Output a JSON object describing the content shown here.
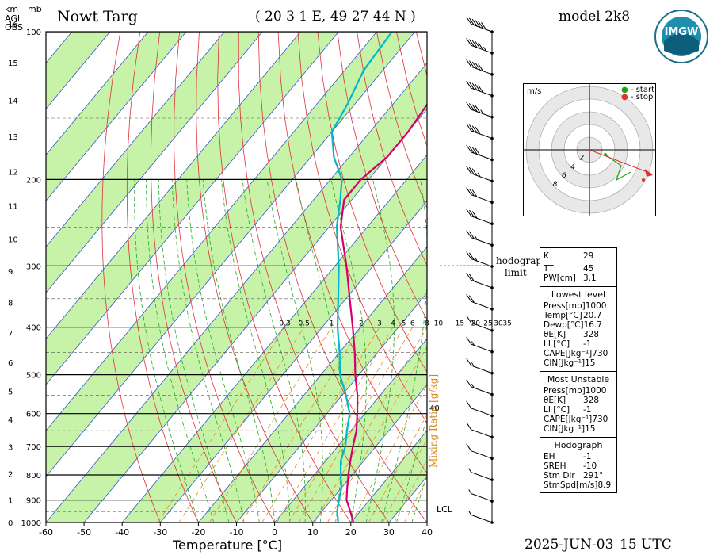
{
  "header": {
    "station": "Nowt Targ",
    "coords": "( 20 3 1 E, 49 27 44 N )",
    "model": "model 2k8",
    "date": "2025-JUN-03",
    "time": "15 UTC",
    "logo_text": "IMGW"
  },
  "axes": {
    "km_label": "km",
    "mb_label": "mb",
    "agl": "AGL",
    "obs": "OBS",
    "xlabel": "Temperature [°C]",
    "mixing_label": "Mixing Ratio [g/kg]",
    "lcl_label": "LCL",
    "hodograph_limit_1": "hodograph",
    "hodograph_limit_2": "limit",
    "mark_40": "40"
  },
  "chart_data": {
    "type": "line",
    "diagram": "skew-T log-p",
    "x_ticks": [
      -60,
      -50,
      -40,
      -30,
      -20,
      -10,
      0,
      10,
      20,
      30,
      40
    ],
    "x_tick_labels": [
      "-60",
      "-50",
      "-40",
      "-30",
      "-20",
      "-10",
      "0",
      "10",
      "20",
      "30",
      "40"
    ],
    "p_ticks": [
      100,
      200,
      300,
      400,
      500,
      600,
      700,
      800,
      900,
      1000
    ],
    "p_tick_labels": [
      "100",
      "200",
      "300",
      "400",
      "500",
      "600",
      "700",
      "800",
      "900",
      "1000"
    ],
    "km_ticks": [
      0,
      1,
      2,
      3,
      4,
      5,
      6,
      7,
      8,
      9,
      10,
      11,
      12,
      13,
      14,
      15,
      16
    ],
    "mixing_ratio_labels": [
      "0.3",
      "0.5",
      "1",
      "2",
      "3",
      "4",
      "5",
      "6",
      "8",
      "10",
      "15",
      "20",
      "25",
      "30",
      "35"
    ],
    "mixing_ratios": [
      0.3,
      0.5,
      1,
      2,
      3,
      4,
      5,
      6,
      8,
      10,
      15,
      20,
      25,
      30,
      35
    ],
    "xlim": [
      -60,
      40
    ],
    "plim": [
      1000,
      100
    ],
    "series": [
      {
        "name": "Temperature",
        "color": "#d4006a",
        "p": [
          1000,
          950,
          900,
          850,
          800,
          750,
          700,
          650,
          600,
          550,
          500,
          450,
          400,
          350,
          300,
          250,
          220,
          200,
          180,
          160,
          140,
          120,
          100
        ],
        "t": [
          20.7,
          17.5,
          14,
          11.5,
          9,
          6.5,
          4,
          1.5,
          -2,
          -6,
          -11,
          -16,
          -22,
          -29,
          -37,
          -47,
          -52,
          -52,
          -50,
          -50,
          -51,
          -52,
          -54
        ]
      },
      {
        "name": "Dewpoint",
        "color": "#00b8c8",
        "p": [
          1000,
          950,
          900,
          850,
          800,
          750,
          700,
          650,
          600,
          550,
          500,
          450,
          400,
          350,
          300,
          250,
          220,
          200,
          180,
          160,
          140,
          120,
          100
        ],
        "t": [
          16.7,
          14,
          12,
          10,
          7,
          4,
          2,
          -1,
          -4,
          -9,
          -15,
          -20,
          -26,
          -32,
          -39,
          -48,
          -53,
          -57,
          -64,
          -70,
          -72,
          -75,
          -76
        ]
      }
    ],
    "wind_barbs_kt": [
      5,
      5,
      5,
      10,
      10,
      10,
      15,
      15,
      15,
      15,
      20,
      20,
      25,
      25,
      30,
      30,
      35,
      40,
      40,
      45,
      50,
      50,
      55,
      60
    ],
    "lcl_p": 950
  },
  "hodograph": {
    "unit": "m/s",
    "legend_start": "- start",
    "legend_stop": "- stop",
    "ring_labels": [
      "2",
      "4",
      "6",
      "8"
    ]
  },
  "indices": {
    "K": {
      "label": "K",
      "value": "29"
    },
    "TT": {
      "label": "TT",
      "value": "45"
    },
    "PW": {
      "label": "PW[cm]",
      "value": "3.1"
    },
    "lowest_title": "Lowest level",
    "lowest": [
      {
        "label": "Press[mb]",
        "value": "1000"
      },
      {
        "label": "Temp[°C]",
        "value": "20.7"
      },
      {
        "label": "Dewp[°C]",
        "value": "16.7"
      },
      {
        "label": "θE[K]",
        "value": "328"
      },
      {
        "label": "LI [°C]",
        "value": "-1"
      },
      {
        "label": "CAPE[Jkg⁻¹]",
        "value": "730"
      },
      {
        "label": "CIN[Jkg⁻¹]",
        "value": "15"
      }
    ],
    "unstable_title": "Most Unstable",
    "unstable": [
      {
        "label": "Press[mb]",
        "value": "1000"
      },
      {
        "label": "θE[K]",
        "value": "328"
      },
      {
        "label": "LI [°C]",
        "value": "-1"
      },
      {
        "label": "CAPE[Jkg⁻¹]",
        "value": "730"
      },
      {
        "label": "CIN[Jkg⁻¹]",
        "value": "15"
      }
    ],
    "hodo_title": "Hodograph",
    "hodo": [
      {
        "label": "EH",
        "value": "-1"
      },
      {
        "label": "SREH",
        "value": "-10"
      },
      {
        "label": "Stm Dir",
        "value": "291°"
      },
      {
        "label": "StmSpd[m/s]",
        "value": "8.9"
      }
    ]
  }
}
